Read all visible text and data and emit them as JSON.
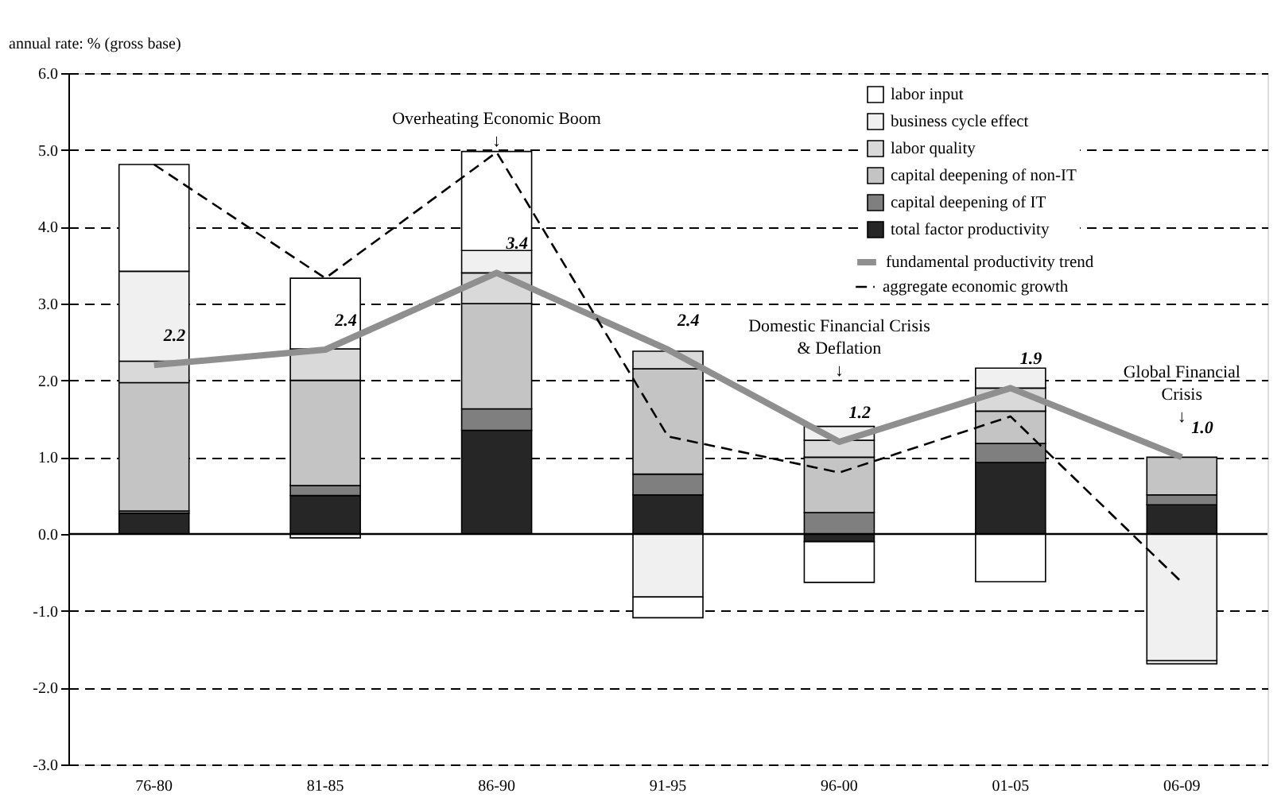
{
  "chart_data": {
    "type": "bar",
    "stacked": true,
    "ylabel": "annual rate: % (gross base)",
    "categories": [
      "76-80",
      "81-85",
      "86-90",
      "91-95",
      "96-00",
      "01-05",
      "06-09"
    ],
    "series": [
      {
        "name": "total factor productivity",
        "color": "#262626",
        "values": [
          0.27,
          0.5,
          1.35,
          0.51,
          -0.1,
          0.93,
          0.38
        ]
      },
      {
        "name": "capital deepening of IT",
        "color": "#7f7f7f",
        "values": [
          0.03,
          0.13,
          0.28,
          0.27,
          0.28,
          0.25,
          0.13
        ]
      },
      {
        "name": "capital deepening of non-IT",
        "color": "#c4c4c4",
        "values": [
          1.67,
          1.37,
          1.37,
          1.37,
          0.72,
          0.42,
          0.49
        ]
      },
      {
        "name": "labor quality",
        "color": "#d9d9d9",
        "values": [
          0.28,
          0.41,
          0.4,
          0.23,
          0.22,
          0.3,
          null
        ]
      },
      {
        "name": "business cycle effect",
        "color": "#f0f0f0",
        "values": [
          1.17,
          -0.05,
          0.29,
          -0.82,
          0.18,
          0.26,
          -1.65
        ]
      },
      {
        "name": "labor input",
        "color": "#ffffff",
        "values": [
          1.39,
          0.92,
          1.29,
          -0.27,
          -0.53,
          -0.62,
          -0.04
        ]
      },
      {
        "name": "fundamental productivity trend",
        "type": "line",
        "color": "#8f8f8f",
        "line_style": "solid",
        "values": [
          2.2,
          2.4,
          3.4,
          2.4,
          1.2,
          1.9,
          1.0
        ],
        "value_labels": [
          "2.2",
          "2.4",
          "3.4",
          "2.4",
          "1.2",
          "1.9",
          "1.0"
        ]
      },
      {
        "name": "aggregate economic growth",
        "type": "line",
        "color": "#000000",
        "line_style": "dashed",
        "values": [
          4.81,
          3.33,
          4.97,
          1.27,
          0.8,
          1.53,
          -0.63
        ]
      }
    ],
    "ylim": [
      -3,
      6
    ],
    "yticks": [
      {
        "value": -3,
        "label": "-3.0"
      },
      {
        "value": -2,
        "label": "-2.0"
      },
      {
        "value": -1,
        "label": "-1.0"
      },
      {
        "value": 0,
        "label": "0.0"
      },
      {
        "value": 1,
        "label": "1.0"
      },
      {
        "value": 2,
        "label": "2.0"
      },
      {
        "value": 3,
        "label": "3.0"
      },
      {
        "value": 4,
        "label": "4.0"
      },
      {
        "value": 5,
        "label": "5.0"
      },
      {
        "value": 6,
        "label": "6.0"
      }
    ],
    "grid": "y",
    "legend": "top right",
    "marker": "none",
    "ref_lines": [
      {
        "axis": "y",
        "value": 0,
        "color": "#000000",
        "line_style": "solid"
      }
    ],
    "annotations": [
      "Overheating Economic Boom\n↓",
      "Domestic Financial Crisis\n& Deflation\n↓",
      "Global Financial\nCrisis\n↓"
    ]
  }
}
